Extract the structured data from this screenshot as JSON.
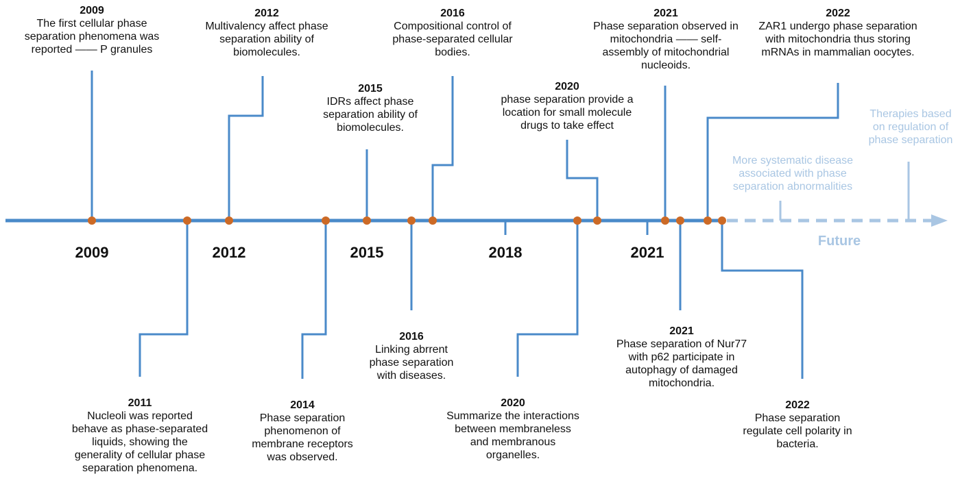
{
  "timeline": {
    "axis_years": [
      "2009",
      "2012",
      "2015",
      "2018",
      "2021"
    ],
    "future_label": "Future",
    "colors": {
      "line": "#4a8ac9",
      "dot": "#cc6a26",
      "future": "#a9c6e3",
      "text": "#111111"
    }
  },
  "events": [
    {
      "id": "e2009",
      "year": "2009",
      "text": "The first cellular phase separation phenomena was reported —— P granules"
    },
    {
      "id": "e2011",
      "year": "2011",
      "text": "Nucleoli was reported behave as phase-separated liquids, showing the generality of cellular phase separation phenomena."
    },
    {
      "id": "e2012",
      "year": "2012",
      "text": "Multivalency affect phase separation ability of biomolecules."
    },
    {
      "id": "e2014",
      "year": "2014",
      "text": "Phase separation phenomenon of membrane receptors was observed."
    },
    {
      "id": "e2015",
      "year": "2015",
      "text": "IDRs affect phase separation ability of biomolecules."
    },
    {
      "id": "e2016a",
      "year": "2016",
      "text": "Linking abrrent phase separation with diseases."
    },
    {
      "id": "e2016b",
      "year": "2016",
      "text": "Compositional control of phase-separated cellular bodies."
    },
    {
      "id": "e2020a",
      "year": "2020",
      "text": "Summarize the interactions between membraneless and membranous organelles."
    },
    {
      "id": "e2020b",
      "year": "2020",
      "text": "phase separation provide a location for small molecule drugs to take effect"
    },
    {
      "id": "e2021a",
      "year": "2021",
      "text": "Phase separation observed in mitochondria —— self-assembly of mitochondrial nucleoids."
    },
    {
      "id": "e2021b",
      "year": "2021",
      "text": "Phase separation of Nur77 with p62 participate in autophagy of damaged mitochondria."
    },
    {
      "id": "e2022a",
      "year": "2022",
      "text": "ZAR1 undergo phase separation with mitochondria thus storing mRNAs in mammalian oocytes."
    },
    {
      "id": "e2022b",
      "year": "2022",
      "text": "Phase separation regulate cell polarity in bacteria."
    }
  ],
  "future_events": [
    {
      "id": "f1",
      "text": "More systematic disease associated with phase separation abnormalities"
    },
    {
      "id": "f2",
      "text": "Therapies based on regulation of phase separation"
    }
  ]
}
